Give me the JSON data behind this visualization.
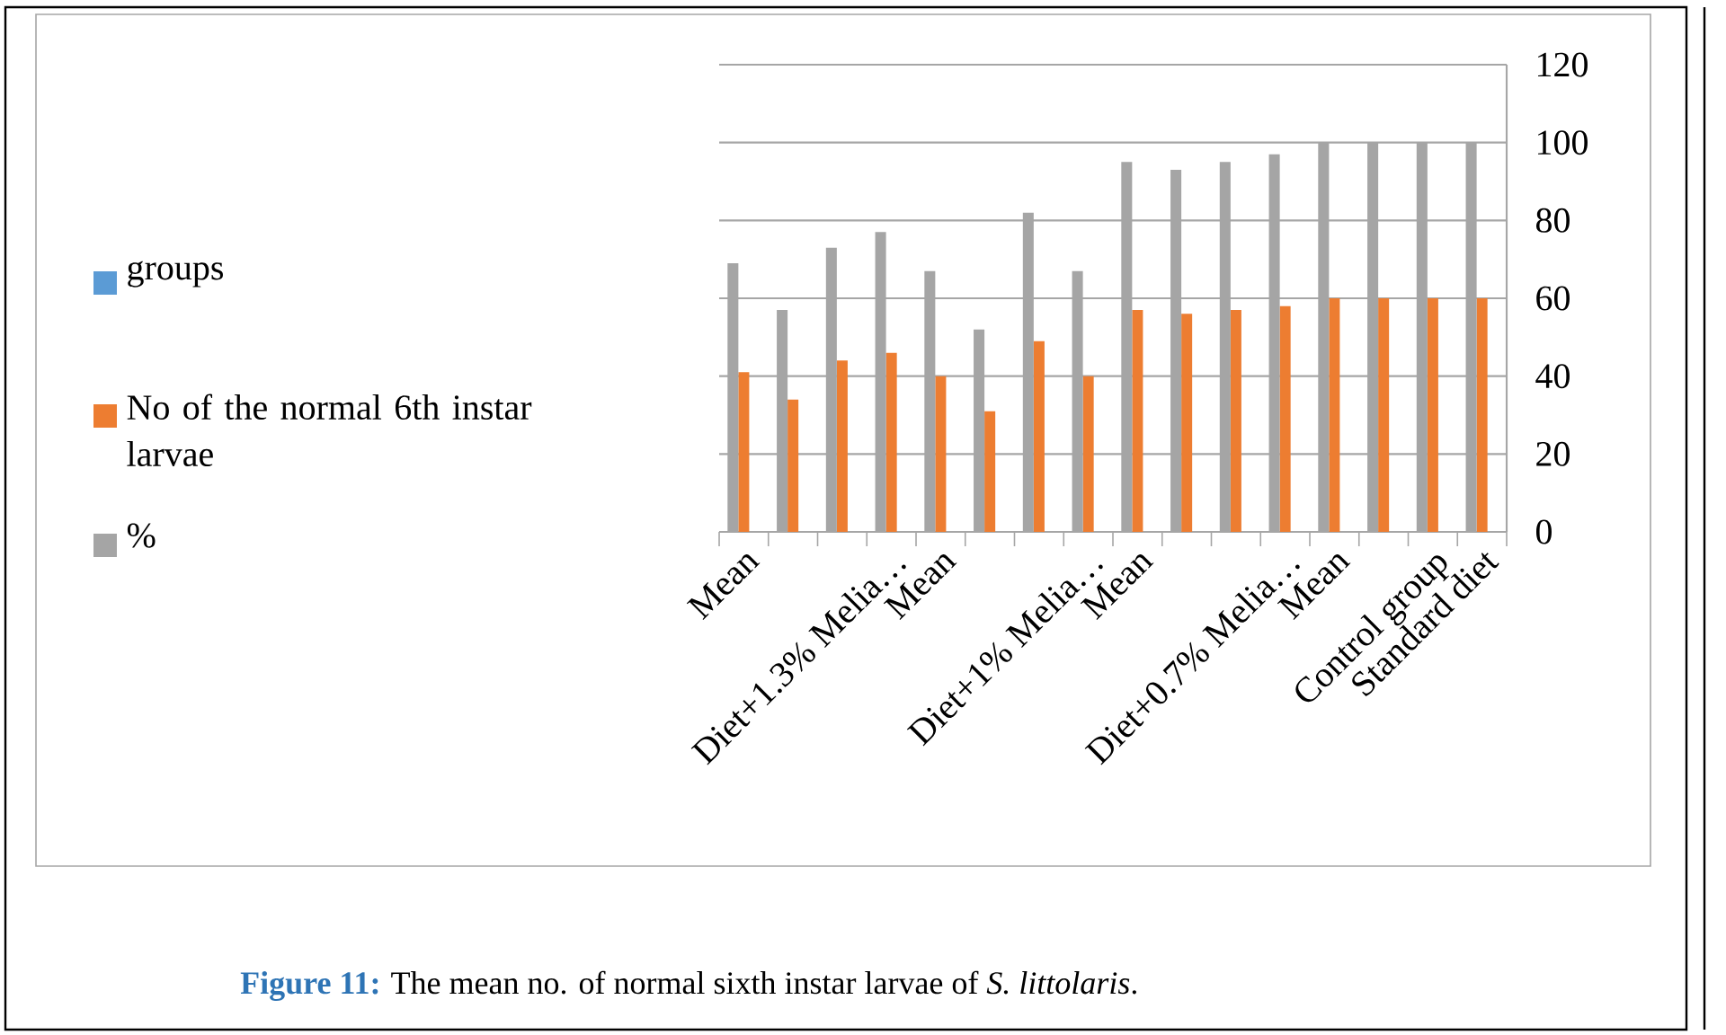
{
  "chart_data": {
    "type": "bar",
    "categories": [
      "Mean",
      null,
      null,
      "Diet+1.3% Melia…",
      "Mean",
      null,
      null,
      "Diet+1% Melia…",
      "Mean",
      null,
      null,
      "Diet+0.7% Melia…",
      "Mean",
      null,
      "Control group",
      "Standard diet"
    ],
    "series": [
      {
        "name": "groups",
        "color": "#5b9bd5",
        "values": [
          null,
          null,
          null,
          null,
          null,
          null,
          null,
          null,
          null,
          null,
          null,
          null,
          null,
          null,
          null,
          null
        ]
      },
      {
        "name": "No of the normal 6th instar larvae",
        "color": "#ed7d31",
        "values": [
          41,
          34,
          44,
          46,
          40,
          31,
          49,
          40,
          57,
          56,
          57,
          58,
          60,
          60,
          60,
          60
        ]
      },
      {
        "name": "%",
        "color": "#a5a5a5",
        "values": [
          69,
          57,
          73,
          77,
          67,
          52,
          82,
          67,
          95,
          93,
          95,
          97,
          100,
          100,
          100,
          100
        ]
      }
    ],
    "ylim": [
      0,
      120
    ],
    "yticks": [
      0,
      20,
      40,
      60,
      80,
      100,
      120
    ],
    "grid": "y",
    "legend": "left",
    "annotations": [
      "**Figure 11:**",
      "The mean no. of normal sixth instar larvae of *S. littolaris*."
    ]
  }
}
